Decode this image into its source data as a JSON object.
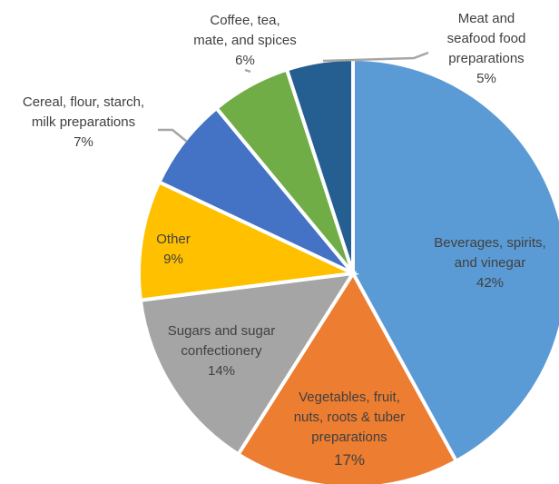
{
  "chart_data": {
    "type": "pie",
    "title": "",
    "legend": "none",
    "slices": [
      {
        "lines": [
          "Beverages, spirits,",
          "and vinegar"
        ],
        "pct_label": "42%",
        "value": 42,
        "color": "#5b9bd5",
        "label_color": "#404040"
      },
      {
        "lines": [
          "Vegetables, fruit,",
          "nuts, roots & tuber",
          "preparations"
        ],
        "pct_label": "17%",
        "value": 17,
        "color": "#ed7d31",
        "label_color": "#404040"
      },
      {
        "lines": [
          "Sugars and sugar",
          "confectionery"
        ],
        "pct_label": "14%",
        "value": 14,
        "color": "#a5a5a5",
        "label_color": "#404040"
      },
      {
        "lines": [
          "Other"
        ],
        "pct_label": "9%",
        "value": 9,
        "color": "#ffc000",
        "label_color": "#404040"
      },
      {
        "lines": [
          "Cereal, flour, starch,",
          "milk preparations"
        ],
        "pct_label": "7%",
        "value": 7,
        "color": "#4472c4",
        "label_color": "#404040"
      },
      {
        "lines": [
          "Coffee, tea,",
          "mate, and spices"
        ],
        "pct_label": "6%",
        "value": 6,
        "color": "#70ad47",
        "label_color": "#404040"
      },
      {
        "lines": [
          "Meat and",
          "seafood food",
          "preparations"
        ],
        "pct_label": "5%",
        "value": 5,
        "color": "#255e91",
        "label_color": "#404040"
      }
    ]
  }
}
